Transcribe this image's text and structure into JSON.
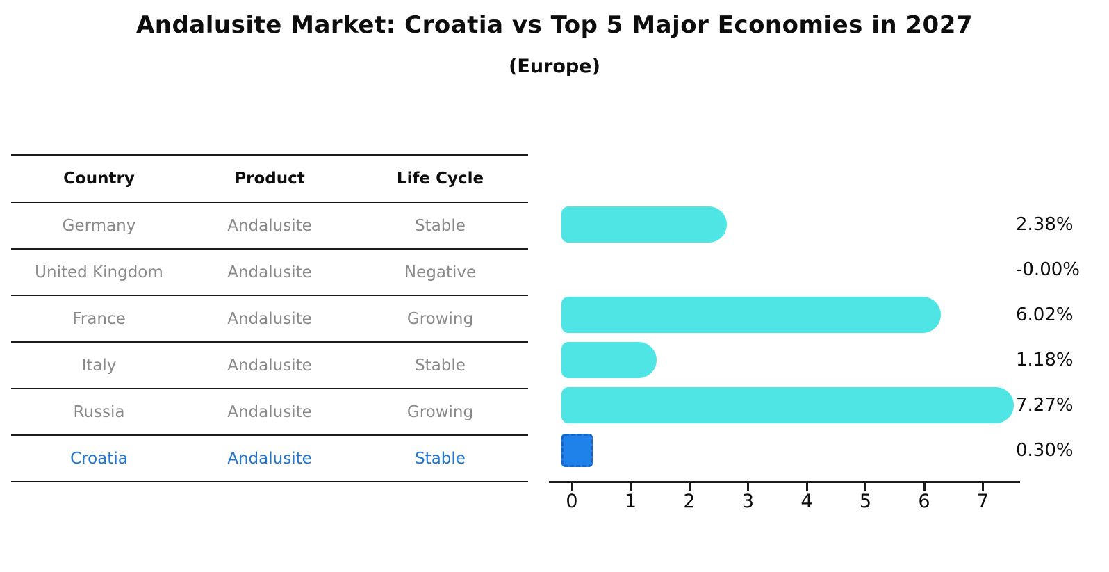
{
  "title": "Andalusite Market: Croatia vs Top 5 Major Economies in 2027",
  "subtitle": "(Europe)",
  "table": {
    "headers": [
      "Country",
      "Product",
      "Life Cycle"
    ],
    "rows": [
      {
        "country": "Germany",
        "product": "Andalusite",
        "life_cycle": "Stable",
        "highlight": false
      },
      {
        "country": "United Kingdom",
        "product": "Andalusite",
        "life_cycle": "Negative",
        "highlight": false
      },
      {
        "country": "France",
        "product": "Andalusite",
        "life_cycle": "Growing",
        "highlight": false
      },
      {
        "country": "Italy",
        "product": "Andalusite",
        "life_cycle": "Stable",
        "highlight": false
      },
      {
        "country": "Russia",
        "product": "Andalusite",
        "life_cycle": "Growing",
        "highlight": true
      },
      {
        "country": "Croatia",
        "product": "Andalusite",
        "life_cycle": "Stable",
        "highlight": true
      }
    ]
  },
  "chart_data": {
    "type": "bar",
    "orientation": "horizontal",
    "title": "Andalusite Market: Croatia vs Top 5 Major Economies in 2027",
    "subtitle": "(Europe)",
    "categories": [
      "Germany",
      "United Kingdom",
      "France",
      "Italy",
      "Russia",
      "Croatia"
    ],
    "values": [
      2.38,
      -0.0,
      6.02,
      1.18,
      7.27,
      0.3
    ],
    "value_labels": [
      "2.38%",
      "-0.00%",
      "6.02%",
      "1.18%",
      "7.27%",
      "0.30%"
    ],
    "x_ticks": [
      0,
      1,
      2,
      3,
      4,
      5,
      6,
      7
    ],
    "xlim": [
      0,
      7.6
    ],
    "grid": false,
    "legend_position": "none",
    "bar_color": "#4FE5E5",
    "highlight_index": 5,
    "highlight_bar_color": "#1E82EA",
    "highlight_border_color": "#1565C9",
    "highlight_text_color": "#2176D2",
    "axis_color": "#1A1A1A",
    "row_text_color": "#8A8A8A"
  }
}
